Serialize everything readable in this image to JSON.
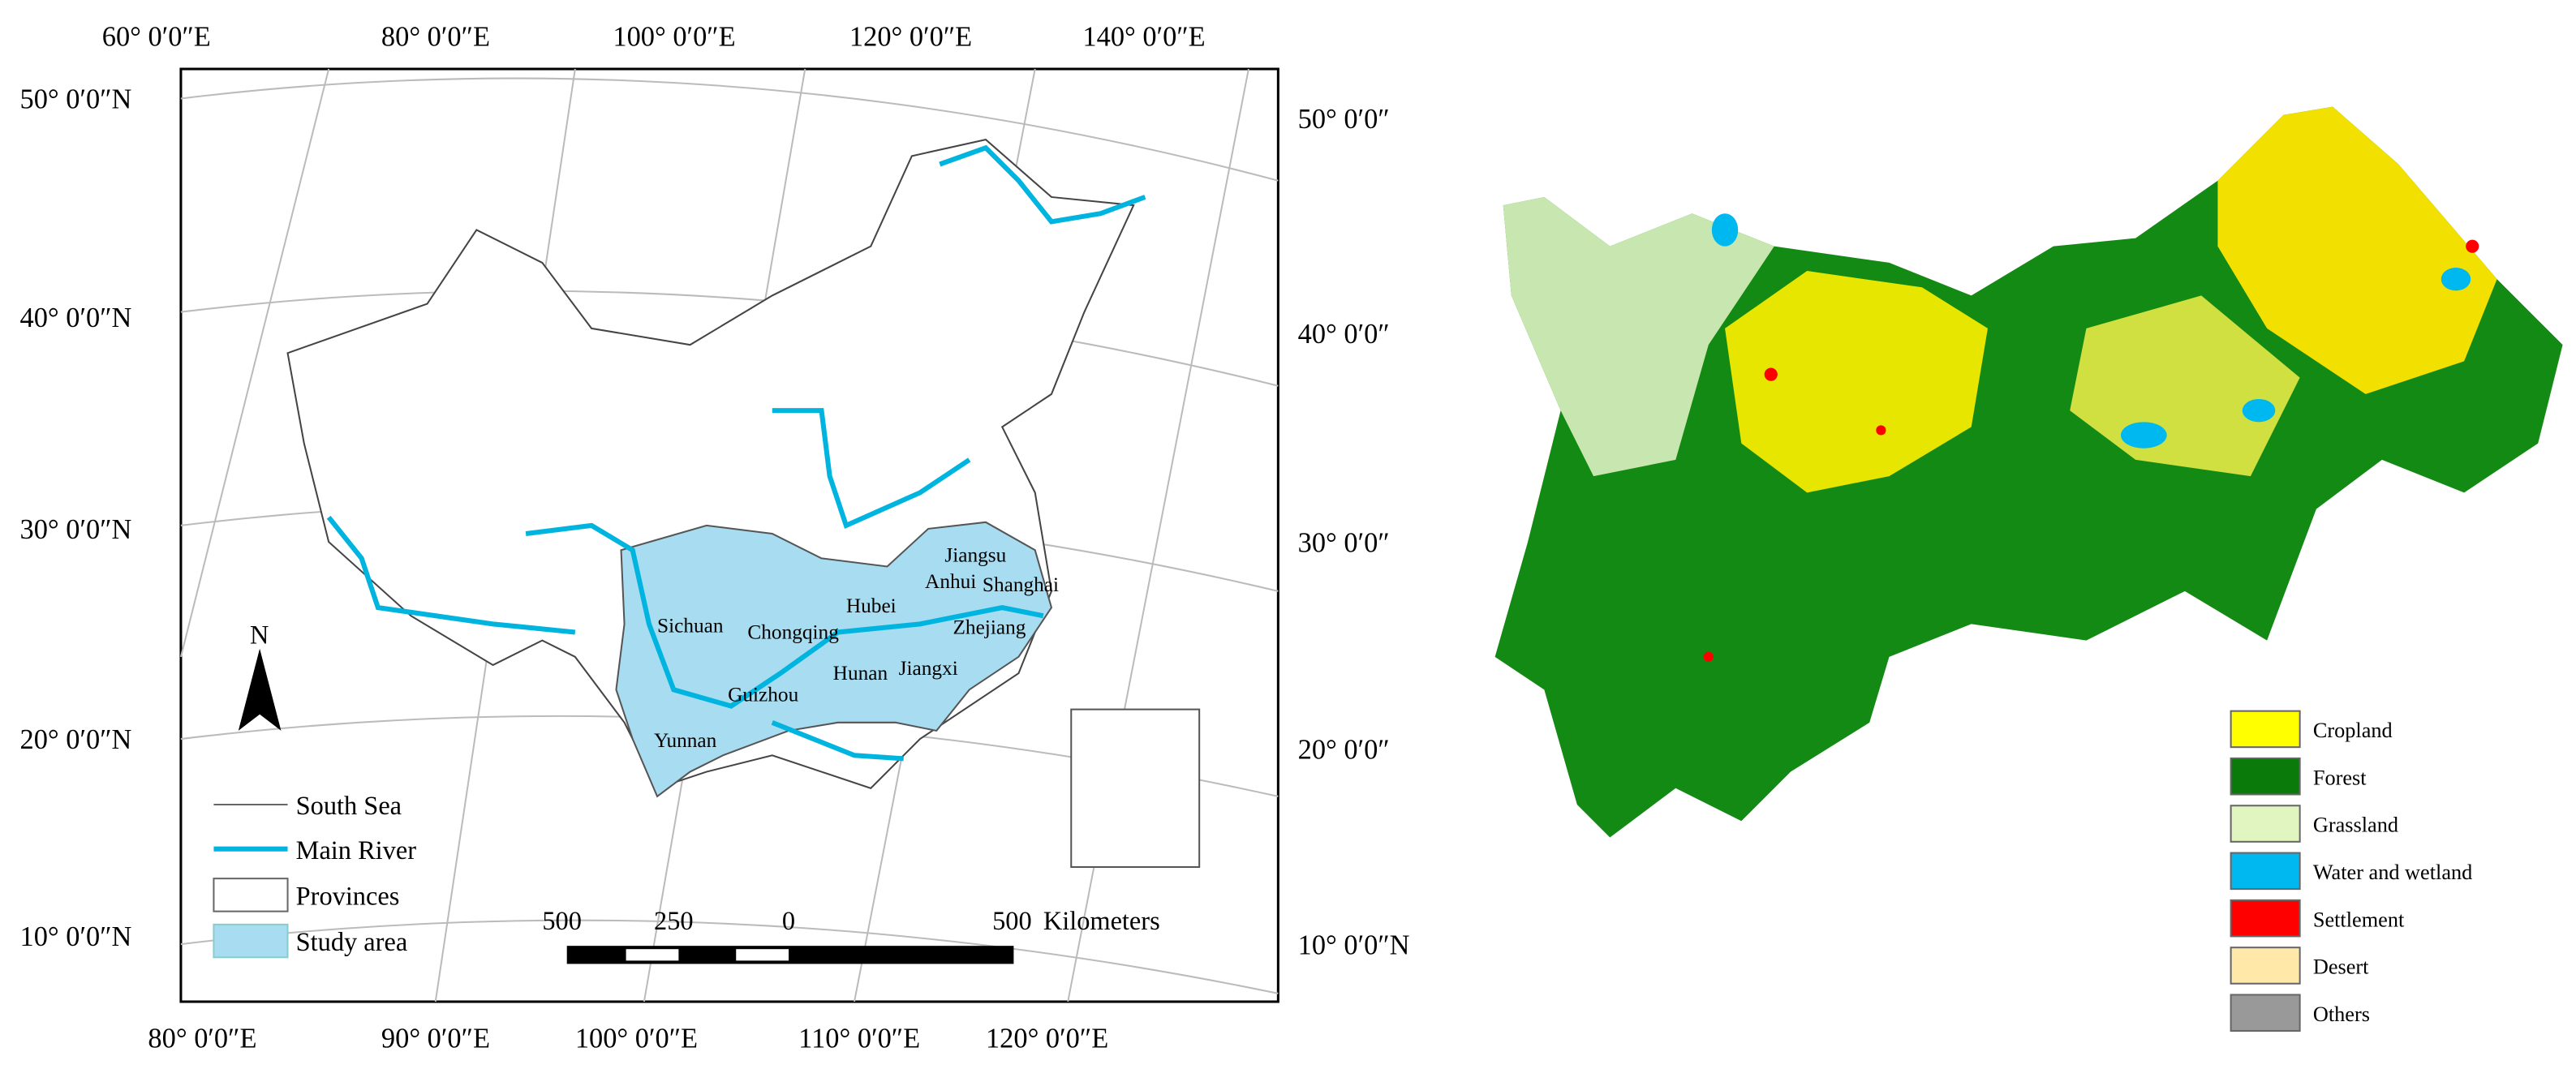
{
  "left_map": {
    "top_labels": [
      "60° 0′0″E",
      "80° 0′0″E",
      "100° 0′0″E",
      "120° 0′0″E",
      "140° 0′0″E"
    ],
    "bottom_labels": [
      "80° 0′0″E",
      "90° 0′0″E",
      "100° 0′0″E",
      "110° 0′0″E",
      "120° 0′0″E"
    ],
    "left_labels": [
      "50° 0′0″N",
      "40° 0′0″N",
      "30° 0′0″N",
      "20° 0′0″N",
      "10° 0′0″N"
    ],
    "right_labels": [
      "50° 0′0″",
      "40° 0′0″",
      "30° 0′0″",
      "20° 0′0″",
      "10° 0′0″N"
    ],
    "north": "N",
    "provinces": [
      "Sichuan",
      "Chongqing",
      "Hubei",
      "Jiangsu",
      "Anhui",
      "Shanghai",
      "Zhejiang",
      "Hunan",
      "Jiangxi",
      "Guizhou",
      "Yunnan"
    ],
    "legend": [
      "South Sea",
      "Main River",
      "Provinces",
      "Study area"
    ],
    "scale_bar": {
      "ticks": [
        "500",
        "250",
        "0",
        "500"
      ],
      "unit": "Kilometers"
    }
  },
  "right_map": {
    "legend": [
      {
        "label": "Cropland",
        "color": "#ffff00"
      },
      {
        "label": "Forest",
        "color": "#0a7a0a"
      },
      {
        "label": "Grassland",
        "color": "#e0f5c0"
      },
      {
        "label": "Water and wetland",
        "color": "#00b8f0"
      },
      {
        "label": "Settlement",
        "color": "#ff0000"
      },
      {
        "label": "Desert",
        "color": "#ffe8a8"
      },
      {
        "label": "Others",
        "color": "#999999"
      }
    ]
  }
}
